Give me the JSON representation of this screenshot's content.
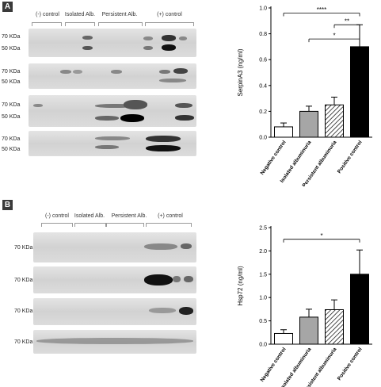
{
  "panels": [
    {
      "label": "A",
      "blot": {
        "groups": [
          "(-) control",
          "Isolated Alb.",
          "Persistent Alb.",
          "(+) control"
        ],
        "rows": [
          {
            "markers": [
              "70 KDa",
              "50 KDa"
            ]
          },
          {
            "markers": [
              "70 KDa",
              "50 KDa"
            ]
          },
          {
            "markers": [
              "70 KDa",
              "50 KDa"
            ]
          },
          {
            "markers": [
              "70 KDa",
              "50 KDa"
            ]
          }
        ]
      }
    },
    {
      "label": "B",
      "blot": {
        "groups": [
          "(-) control",
          "Isolated Alb.",
          "Persistent Alb.",
          "(+) control"
        ],
        "rows": [
          {
            "markers": [
              "70 KDa"
            ]
          },
          {
            "markers": [
              "70 KDa"
            ]
          },
          {
            "markers": [
              "70 KDa"
            ]
          },
          {
            "markers": [
              "70 KDa"
            ]
          }
        ]
      }
    }
  ],
  "chart_data": [
    {
      "type": "bar",
      "categories": [
        "Negative control",
        "Isolated albuminuria",
        "Persistent albuminuria",
        "Positive control"
      ],
      "values": [
        0.08,
        0.2,
        0.25,
        0.7
      ],
      "errors": [
        0.03,
        0.04,
        0.06,
        0.17
      ],
      "ylabel": "SerpinA3 (ng/ml)",
      "ylim": [
        0,
        1.0
      ],
      "yticks": [
        "0.0",
        "0.2",
        "0.4",
        "0.6",
        "0.8",
        "1.0"
      ],
      "yticks_values": [
        0,
        0.2,
        0.4,
        0.6,
        0.8,
        1.0
      ],
      "bar_fills": [
        "#ffffff",
        "#a6a6a6",
        "hatch",
        "#000000"
      ],
      "significance": [
        {
          "from": 0,
          "to": 3,
          "label": "****",
          "level": 0.96
        },
        {
          "from": 2,
          "to": 3,
          "label": "**",
          "level": 0.87
        },
        {
          "from": 1,
          "to": 3,
          "label": "*",
          "level": 0.76
        }
      ]
    },
    {
      "type": "bar",
      "categories": [
        "Negative control",
        "Isolated albuminuria",
        "Persistent albuminuria",
        "Positive control"
      ],
      "values": [
        0.23,
        0.58,
        0.74,
        1.5
      ],
      "errors": [
        0.08,
        0.17,
        0.21,
        0.52
      ],
      "ylabel": "Hsp72  (ng/ml)",
      "ylim": [
        0,
        2.5
      ],
      "yticks": [
        "0.0",
        "0.5",
        "1.0",
        "1.5",
        "2.0",
        "2.5"
      ],
      "yticks_values": [
        0,
        0.5,
        1.0,
        1.5,
        2.0,
        2.5
      ],
      "bar_fills": [
        "#ffffff",
        "#a6a6a6",
        "hatch",
        "#000000"
      ],
      "significance": [
        {
          "from": 0,
          "to": 3,
          "label": "*",
          "level": 2.25
        }
      ]
    }
  ]
}
